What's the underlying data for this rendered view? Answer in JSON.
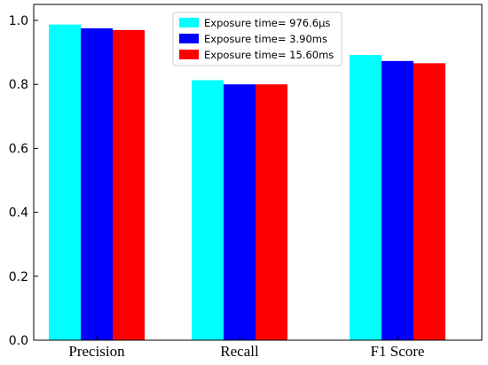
{
  "chart_data": {
    "type": "bar",
    "categories": [
      "Precision",
      "Recall",
      "F1 Score"
    ],
    "series": [
      {
        "name": "Exposure time= 976.6μs",
        "color": "#00ffff",
        "values": [
          0.987,
          0.813,
          0.892
        ]
      },
      {
        "name": "Exposure time= 3.90ms",
        "color": "#0000ff",
        "values": [
          0.975,
          0.8,
          0.873
        ]
      },
      {
        "name": "Exposure time= 15.60ms",
        "color": "#ff0000",
        "values": [
          0.97,
          0.8,
          0.866
        ]
      }
    ],
    "yticks": [
      "0.0",
      "0.2",
      "0.4",
      "0.6",
      "0.8",
      "1.0"
    ],
    "ylim": [
      0,
      1.0
    ],
    "grid": false,
    "legend": "top-center"
  }
}
